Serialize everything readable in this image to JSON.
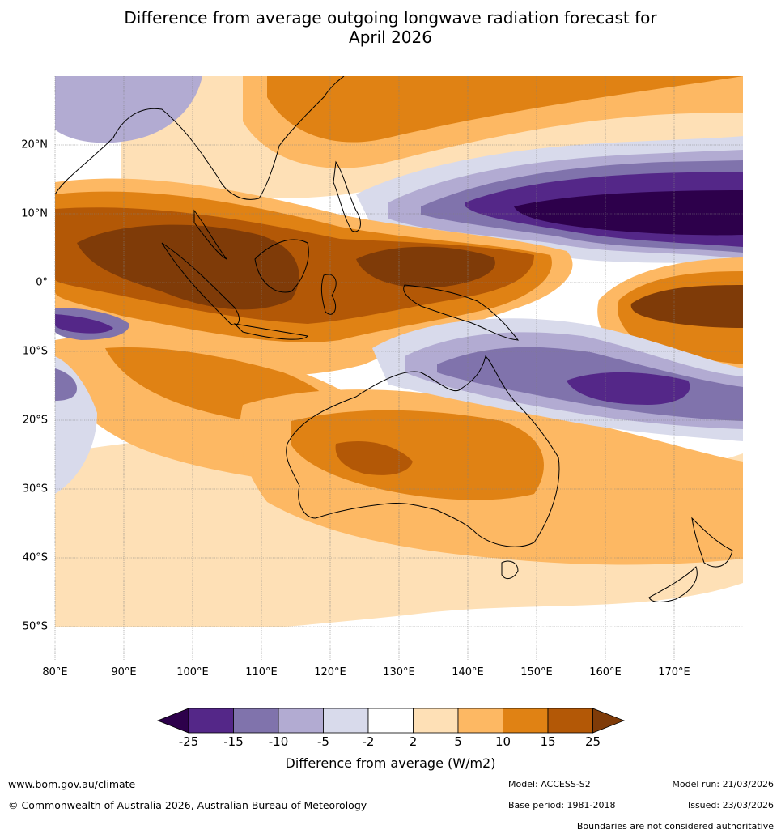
{
  "title_line1": "Difference from average outgoing longwave radiation forecast for",
  "title_line2": "April 2026",
  "longitude_labels": [
    "80°E",
    "90°E",
    "100°E",
    "110°E",
    "120°E",
    "130°E",
    "140°E",
    "150°E",
    "160°E",
    "170°E"
  ],
  "latitude_labels": [
    "20°N",
    "10°N",
    "0°",
    "10°S",
    "20°S",
    "30°S",
    "40°S",
    "50°S"
  ],
  "legend": {
    "title": "Difference from average (W/m2)",
    "tick_labels": [
      "-25",
      "-15",
      "-10",
      "-5",
      "-2",
      "2",
      "5",
      "10",
      "15",
      "25"
    ],
    "colors": [
      "#2d004b",
      "#542788",
      "#8073ac",
      "#b2abd2",
      "#d8daeb",
      "#ffffff",
      "#fee0b6",
      "#fdb863",
      "#e08214",
      "#b35806",
      "#7f3b08"
    ]
  },
  "footer": {
    "website": "www.bom.gov.au/climate",
    "copyright": "© Commonwealth of Australia 2026, Australian Bureau of Meteorology",
    "model": "Model: ACCESS-S2",
    "base_period": "Base period: 1981-2018",
    "model_run": "Model run: 21/03/2026",
    "issued": "Issued: 23/03/2026",
    "disclaimer": "Boundaries are not considered authoritative"
  }
}
